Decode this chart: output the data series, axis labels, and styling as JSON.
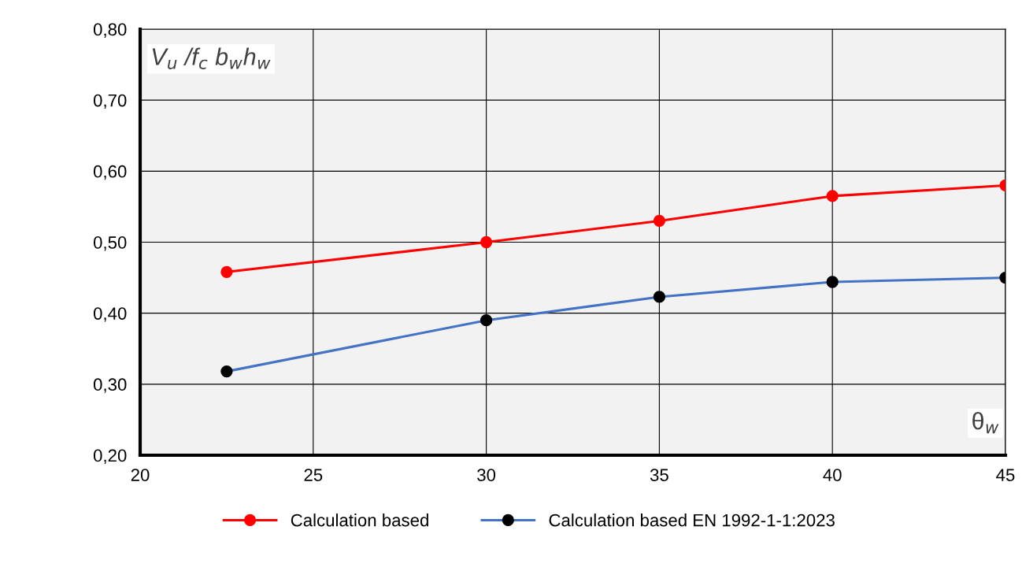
{
  "chart_data": {
    "type": "line",
    "xlabel": "θ$_{w}$",
    "ylabel": "V$_{u}$ /f$_{c}$ b$_{w}$h$_{w}$",
    "x": [
      22.5,
      30,
      35,
      40,
      45
    ],
    "series": [
      {
        "name": "Calculation based",
        "color": "#ff0000",
        "colors": [
          "#ff0000",
          "#ff0000",
          "#ff0000",
          "#ff0000",
          "#ff0000"
        ],
        "values": [
          0.458,
          0.5,
          0.53,
          0.565,
          0.58
        ]
      },
      {
        "name": "Calculation based EN 1992-1-1:2023",
        "color": "#4472c4",
        "colors": [
          "#000000",
          "#000000",
          "#000000",
          "#000000",
          "#000000"
        ],
        "values": [
          0.318,
          0.39,
          0.423,
          0.444,
          0.45
        ]
      }
    ],
    "xlim": [
      20,
      45
    ],
    "xticks": [
      20,
      25,
      30,
      35,
      40,
      45
    ],
    "ylim": [
      0.2,
      0.8
    ],
    "yticks": [
      {
        "value": 0.2,
        "label": "0,20"
      },
      {
        "value": 0.3,
        "label": "0,30"
      },
      {
        "value": 0.4,
        "label": "0,40"
      },
      {
        "value": 0.5,
        "label": "0,50"
      },
      {
        "value": 0.6,
        "label": "0,60"
      },
      {
        "value": 0.7,
        "label": "0,70"
      },
      {
        "value": 0.8,
        "label": "0,80"
      }
    ],
    "grid": true,
    "legend": "bottom",
    "marker": "circle",
    "line_style": "solid"
  }
}
